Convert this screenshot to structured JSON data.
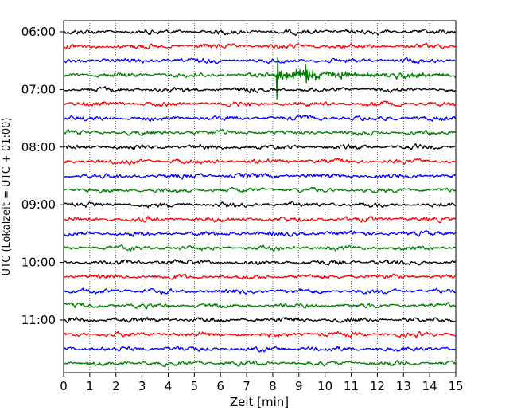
{
  "chart_data": {
    "type": "line",
    "title": "",
    "xlabel": "Zeit  [min]",
    "ylabel": "UTC (Lokalzeit = UTC + 01:00)",
    "xlim": [
      0,
      15
    ],
    "x_ticks": [
      0,
      1,
      2,
      3,
      4,
      5,
      6,
      7,
      8,
      9,
      10,
      11,
      12,
      13,
      14,
      15
    ],
    "y_ticks": [
      "06:00",
      "07:00",
      "08:00",
      "09:00",
      "10:00",
      "11:00"
    ],
    "grid": "vertical dotted at each minute",
    "trace_interval_min": 15,
    "first_trace": "06:00",
    "trace_count": 24,
    "color_cycle": [
      "#000000",
      "#ff0000",
      "#0000ff",
      "#008000"
    ],
    "event": {
      "trace_start": "06:45",
      "onset_min": 8.15,
      "secondary_min": 9.25
    }
  }
}
